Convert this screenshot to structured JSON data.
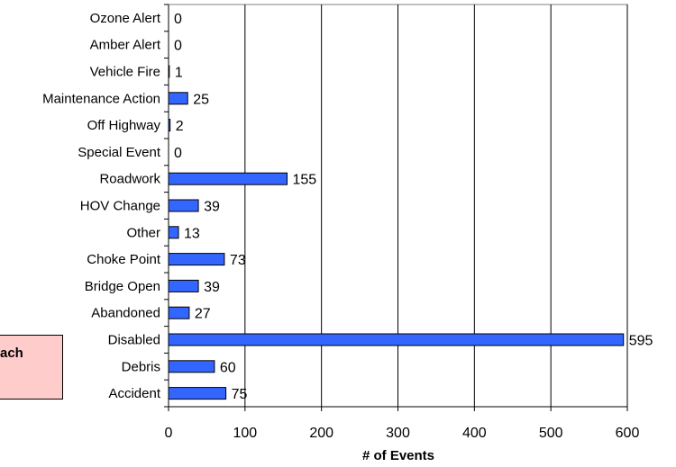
{
  "chart_data": {
    "type": "bar",
    "orientation": "horizontal",
    "categories": [
      "Ozone Alert",
      "Amber Alert",
      "Vehicle Fire",
      "Maintenance Action",
      "Off Highway",
      "Special Event",
      "Roadwork",
      "HOV Change",
      "Other",
      "Choke Point",
      "Bridge Open",
      "Abandoned",
      "Disabled",
      "Debris",
      "Accident"
    ],
    "values": [
      0,
      0,
      1,
      25,
      2,
      0,
      155,
      39,
      13,
      73,
      39,
      27,
      595,
      60,
      75
    ],
    "xlabel": "# of Events",
    "xlim": [
      0,
      600
    ],
    "xticks": [
      0,
      100,
      200,
      300,
      400,
      500,
      600
    ],
    "grid": "vertical",
    "colors": {
      "bar": "#3366ff",
      "bar_stroke": "#000000",
      "grid": "#000000"
    }
  },
  "side_note": {
    "text": "ach"
  }
}
